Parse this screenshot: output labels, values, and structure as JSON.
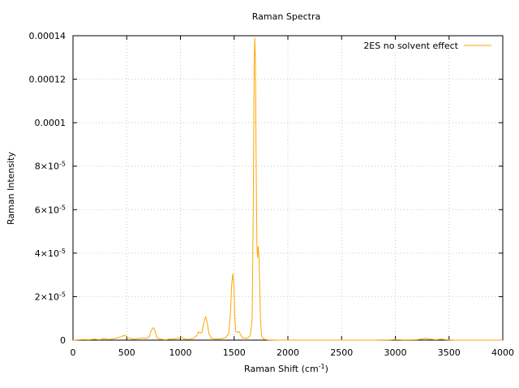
{
  "chart_data": {
    "type": "line",
    "title": "Raman Spectra",
    "xlabel": "Raman Shift (cm",
    "xlabel_sup": "-1",
    "xlabel_close": ")",
    "ylabel": "Raman Intensity",
    "xlim": [
      0,
      4000
    ],
    "ylim": [
      0,
      0.00014
    ],
    "grid": true,
    "legend_position": "top-right",
    "x_ticks": [
      {
        "value": 0,
        "label": "0"
      },
      {
        "value": 500,
        "label": "500"
      },
      {
        "value": 1000,
        "label": "1000"
      },
      {
        "value": 1500,
        "label": "1500"
      },
      {
        "value": 2000,
        "label": "2000"
      },
      {
        "value": 2500,
        "label": "2500"
      },
      {
        "value": 3000,
        "label": "3000"
      },
      {
        "value": 3500,
        "label": "3500"
      },
      {
        "value": 4000,
        "label": "4000"
      }
    ],
    "y_ticks": [
      {
        "value": 0,
        "mant": "0",
        "exp": ""
      },
      {
        "value": 2e-05,
        "mant": "2×10",
        "exp": "-5"
      },
      {
        "value": 4e-05,
        "mant": "4×10",
        "exp": "-5"
      },
      {
        "value": 6e-05,
        "mant": "6×10",
        "exp": "-5"
      },
      {
        "value": 8e-05,
        "mant": "8×10",
        "exp": "-5"
      },
      {
        "value": 0.0001,
        "mant": "0.0001",
        "exp": ""
      },
      {
        "value": 0.00012,
        "mant": "0.00012",
        "exp": ""
      },
      {
        "value": 0.00014,
        "mant": "0.00014",
        "exp": ""
      }
    ],
    "series": [
      {
        "name": "2ES no solvent effect",
        "color": "#ffa500",
        "points": [
          [
            0,
            0
          ],
          [
            100,
            3e-07
          ],
          [
            150,
            2e-07
          ],
          [
            200,
            4e-07
          ],
          [
            250,
            2e-07
          ],
          [
            290,
            8e-07
          ],
          [
            330,
            3e-07
          ],
          [
            380,
            6e-07
          ],
          [
            420,
            1.2e-06
          ],
          [
            450,
            1.6e-06
          ],
          [
            480,
            2.2e-06
          ],
          [
            510,
            1.2e-06
          ],
          [
            560,
            4e-07
          ],
          [
            600,
            6e-07
          ],
          [
            640,
            1e-06
          ],
          [
            680,
            8e-07
          ],
          [
            710,
            1.6e-06
          ],
          [
            730,
            4.5e-06
          ],
          [
            750,
            5.8e-06
          ],
          [
            765,
            4e-06
          ],
          [
            780,
            1.2e-06
          ],
          [
            810,
            4e-07
          ],
          [
            860,
            2e-07
          ],
          [
            900,
            4e-07
          ],
          [
            950,
            6e-07
          ],
          [
            990,
            1e-06
          ],
          [
            1010,
            1.6e-06
          ],
          [
            1030,
            6e-07
          ],
          [
            1080,
            3e-07
          ],
          [
            1120,
            8e-07
          ],
          [
            1150,
            2e-06
          ],
          [
            1170,
            3.8e-06
          ],
          [
            1185,
            3.2e-06
          ],
          [
            1200,
            3.5e-06
          ],
          [
            1215,
            7.5e-06
          ],
          [
            1235,
            1.08e-05
          ],
          [
            1250,
            8e-06
          ],
          [
            1265,
            3e-06
          ],
          [
            1290,
            8e-07
          ],
          [
            1330,
            4e-07
          ],
          [
            1380,
            6e-07
          ],
          [
            1420,
            1.2e-06
          ],
          [
            1450,
            3e-06
          ],
          [
            1465,
            1.2e-05
          ],
          [
            1478,
            2.6e-05
          ],
          [
            1488,
            3.05e-05
          ],
          [
            1497,
            2.5e-05
          ],
          [
            1505,
            1.2e-05
          ],
          [
            1515,
            4e-06
          ],
          [
            1530,
            3.5e-06
          ],
          [
            1545,
            4e-06
          ],
          [
            1560,
            2.5e-06
          ],
          [
            1580,
            1e-06
          ],
          [
            1620,
            8e-07
          ],
          [
            1650,
            2e-06
          ],
          [
            1668,
            1e-05
          ],
          [
            1678,
            6e-05
          ],
          [
            1686,
            0.000125
          ],
          [
            1692,
            0.000139
          ],
          [
            1698,
            0.000128
          ],
          [
            1705,
            8e-05
          ],
          [
            1712,
            4.4e-05
          ],
          [
            1718,
            3.8e-05
          ],
          [
            1724,
            4.3e-05
          ],
          [
            1730,
            4e-05
          ],
          [
            1738,
            2.5e-05
          ],
          [
            1745,
            1e-05
          ],
          [
            1755,
            2e-06
          ],
          [
            1775,
            4e-07
          ],
          [
            1820,
            1e-07
          ],
          [
            1900,
            0
          ],
          [
            2000,
            0
          ],
          [
            2200,
            0
          ],
          [
            2500,
            0
          ],
          [
            2800,
            0
          ],
          [
            2950,
            1e-07
          ],
          [
            3000,
            3e-07
          ],
          [
            3030,
            2e-07
          ],
          [
            3080,
            1e-07
          ],
          [
            3200,
            2e-07
          ],
          [
            3260,
            6e-07
          ],
          [
            3290,
            8e-07
          ],
          [
            3320,
            4e-07
          ],
          [
            3380,
            2e-07
          ],
          [
            3430,
            5e-07
          ],
          [
            3470,
            2e-07
          ],
          [
            3550,
            0
          ],
          [
            3800,
            0
          ],
          [
            4000,
            0
          ]
        ]
      }
    ]
  }
}
